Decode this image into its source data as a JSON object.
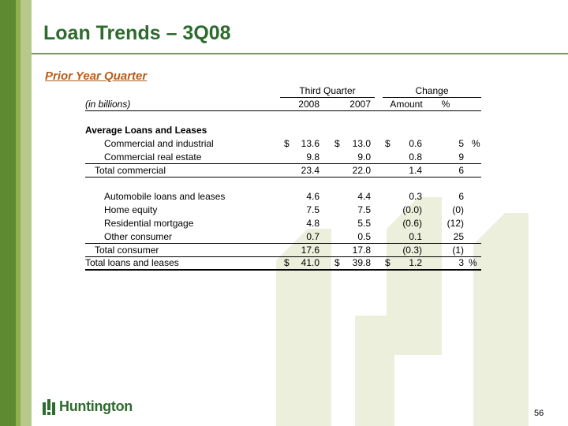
{
  "slide": {
    "title": "Loan Trends – 3Q08",
    "subtitle": "Prior Year Quarter",
    "page_number": "56"
  },
  "logo": {
    "text": "Huntington"
  },
  "table": {
    "group_headers": {
      "third_quarter": "Third Quarter",
      "change": "Change"
    },
    "units": "(in billions)",
    "col_headers": {
      "y2008": "2008",
      "y2007": "2007",
      "amount": "Amount",
      "pct": "%"
    },
    "section_title": "Average Loans and Leases",
    "currency": "$",
    "rows": [
      {
        "label": "Commercial and industrial",
        "y2008": "13.6",
        "y2007": "13.0",
        "amount": "0.6",
        "pct": "5",
        "pct_suffix": "%"
      },
      {
        "label": "Commercial real estate",
        "y2008": "9.8",
        "y2007": "9.0",
        "amount": "0.8",
        "pct": "9"
      },
      {
        "label": "Total commercial",
        "y2008": "23.4",
        "y2007": "22.0",
        "amount": "1.4",
        "pct": "6"
      },
      {
        "label": "Automobile loans and leases",
        "y2008": "4.6",
        "y2007": "4.4",
        "amount": "0.3",
        "pct": "6"
      },
      {
        "label": "Home equity",
        "y2008": "7.5",
        "y2007": "7.5",
        "amount": "(0.0)",
        "pct": "(0)"
      },
      {
        "label": "Residential mortgage",
        "y2008": "4.8",
        "y2007": "5.5",
        "amount": "(0.6)",
        "pct": "(12)"
      },
      {
        "label": "Other consumer",
        "y2008": "0.7",
        "y2007": "0.5",
        "amount": "0.1",
        "pct": "25"
      },
      {
        "label": "Total consumer",
        "y2008": "17.6",
        "y2007": "17.8",
        "amount": "(0.3)",
        "pct": "(1)"
      },
      {
        "label": "Total loans and leases",
        "y2008": "41.0",
        "y2007": "39.8",
        "amount": "1.2",
        "pct": "3",
        "pct_suffix": "%"
      }
    ]
  },
  "colors": {
    "title": "#2e6b2e",
    "subtitle": "#b65e1c",
    "accent_bar": "#5e8a32"
  }
}
